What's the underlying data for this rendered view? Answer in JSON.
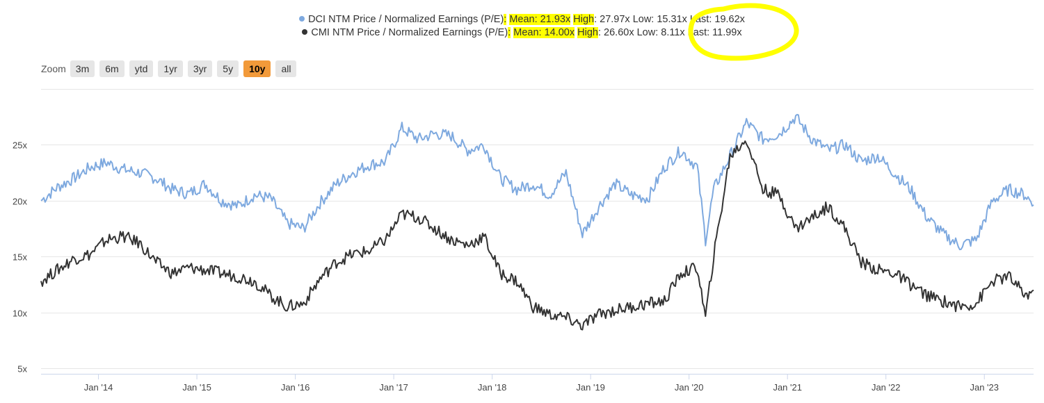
{
  "legend": {
    "dci": {
      "label": "DCI NTM Price / Normalized Earnings (P/E)",
      "sep": ":",
      "mean": "Mean: 21.93x",
      "high": "High",
      "rest": ": 27.97x Low: 15.31x Last: 19.62x",
      "color": "#7ea9df"
    },
    "cmi": {
      "label": "CMI NTM Price / Normalized Earnings (P/E)",
      "sep": ":",
      "mean": "Mean: 14.00x",
      "high": "High",
      "rest": ": 26.60x Low: 8.11x Last: 11.99x",
      "color": "#333333"
    }
  },
  "zoom": {
    "label": "Zoom",
    "buttons": [
      "3m",
      "6m",
      "ytd",
      "1yr",
      "3yr",
      "5y",
      "10y",
      "all"
    ],
    "active": "10y"
  },
  "annotations": {
    "highlight_color": "#ffff00"
  },
  "chart_data": {
    "type": "line",
    "x_ticks": [
      "Jan '14",
      "Jan '15",
      "Jan '16",
      "Jan '17",
      "Jan '18",
      "Jan '19",
      "Jan '20",
      "Jan '21",
      "Jan '22",
      "Jan '23"
    ],
    "y_ticks": [
      "5x",
      "10x",
      "15x",
      "20x",
      "25x"
    ],
    "y_tick_values": [
      5,
      10,
      15,
      20,
      25
    ],
    "ylim": [
      4.5,
      30
    ],
    "xlim": [
      "2013-06",
      "2023-07"
    ],
    "grid": true,
    "legend_position": "top-center",
    "series": [
      {
        "name": "DCI NTM Price / Normalized Earnings (P/E)",
        "color": "#7ea9df",
        "x": [
          "2013-06",
          "2013-08",
          "2013-10",
          "2013-12",
          "2014-02",
          "2014-04",
          "2014-06",
          "2014-08",
          "2014-10",
          "2014-12",
          "2015-02",
          "2015-04",
          "2015-06",
          "2015-08",
          "2015-10",
          "2015-12",
          "2016-02",
          "2016-04",
          "2016-06",
          "2016-08",
          "2016-10",
          "2016-12",
          "2017-02",
          "2017-04",
          "2017-06",
          "2017-08",
          "2017-10",
          "2017-12",
          "2018-02",
          "2018-04",
          "2018-06",
          "2018-08",
          "2018-10",
          "2018-12",
          "2019-02",
          "2019-04",
          "2019-06",
          "2019-08",
          "2019-10",
          "2019-12",
          "2020-02",
          "2020-03",
          "2020-04",
          "2020-06",
          "2020-08",
          "2020-10",
          "2020-12",
          "2021-02",
          "2021-04",
          "2021-06",
          "2021-08",
          "2021-10",
          "2021-12",
          "2022-02",
          "2022-04",
          "2022-06",
          "2022-08",
          "2022-10",
          "2022-12",
          "2023-02",
          "2023-04",
          "2023-06",
          "2023-07"
        ],
        "y": [
          20.0,
          21.2,
          22.0,
          23.0,
          23.4,
          22.8,
          22.5,
          22.0,
          21.0,
          20.6,
          21.5,
          20.0,
          19.5,
          20.5,
          20.2,
          18.0,
          17.5,
          19.8,
          21.5,
          22.5,
          23.2,
          23.5,
          26.5,
          25.5,
          26.0,
          25.8,
          24.5,
          25.0,
          22.0,
          21.0,
          21.5,
          20.5,
          22.5,
          17.0,
          19.5,
          21.5,
          20.5,
          20.2,
          23.0,
          24.5,
          23.0,
          16.5,
          21.0,
          24.0,
          27.0,
          25.5,
          26.0,
          27.5,
          25.5,
          24.5,
          25.0,
          23.5,
          24.0,
          22.5,
          21.0,
          18.5,
          17.0,
          16.0,
          16.5,
          20.0,
          21.0,
          20.5,
          19.62
        ]
      },
      {
        "name": "CMI NTM Price / Normalized Earnings (P/E)",
        "color": "#333333",
        "x": [
          "2013-06",
          "2013-08",
          "2013-10",
          "2013-12",
          "2014-02",
          "2014-04",
          "2014-06",
          "2014-08",
          "2014-10",
          "2014-12",
          "2015-02",
          "2015-04",
          "2015-06",
          "2015-08",
          "2015-10",
          "2015-12",
          "2016-02",
          "2016-04",
          "2016-06",
          "2016-08",
          "2016-10",
          "2016-12",
          "2017-02",
          "2017-04",
          "2017-06",
          "2017-08",
          "2017-10",
          "2017-12",
          "2018-02",
          "2018-04",
          "2018-06",
          "2018-08",
          "2018-10",
          "2018-12",
          "2019-02",
          "2019-04",
          "2019-06",
          "2019-08",
          "2019-10",
          "2019-12",
          "2020-02",
          "2020-03",
          "2020-04",
          "2020-06",
          "2020-08",
          "2020-10",
          "2020-12",
          "2021-02",
          "2021-04",
          "2021-06",
          "2021-08",
          "2021-10",
          "2021-12",
          "2022-02",
          "2022-04",
          "2022-06",
          "2022-08",
          "2022-10",
          "2022-12",
          "2023-02",
          "2023-04",
          "2023-06",
          "2023-07"
        ],
        "y": [
          12.8,
          13.8,
          14.8,
          15.2,
          16.5,
          16.8,
          16.2,
          14.5,
          13.5,
          14.0,
          13.8,
          13.5,
          13.2,
          12.8,
          11.5,
          10.5,
          10.8,
          13.0,
          14.5,
          15.2,
          15.5,
          16.5,
          18.8,
          18.5,
          17.5,
          16.5,
          16.0,
          16.8,
          13.5,
          12.8,
          10.5,
          9.8,
          9.5,
          8.8,
          9.8,
          10.2,
          10.5,
          10.8,
          11.0,
          13.5,
          14.0,
          9.5,
          15.0,
          24.0,
          25.5,
          21.0,
          20.5,
          17.5,
          18.5,
          19.5,
          17.5,
          14.5,
          13.8,
          13.5,
          12.5,
          11.5,
          11.0,
          10.5,
          10.8,
          12.8,
          13.2,
          11.5,
          11.99
        ]
      }
    ]
  }
}
